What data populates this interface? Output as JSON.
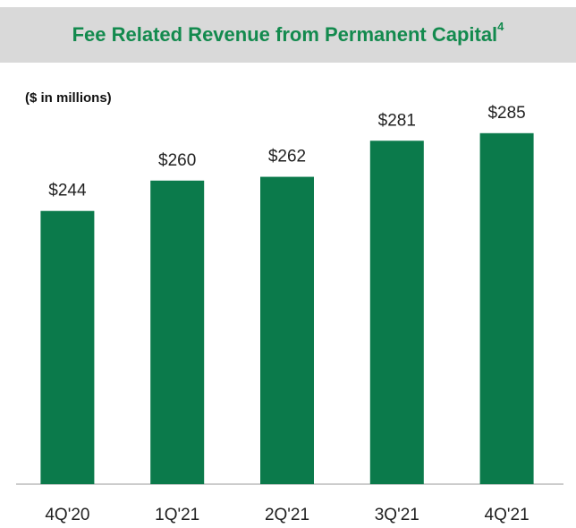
{
  "chart_data": {
    "type": "bar",
    "title": "Fee Related Revenue from Permanent Capital",
    "title_superscript": "4",
    "subtitle": "($ in millions)",
    "categories": [
      "4Q'20",
      "1Q'21",
      "2Q'21",
      "3Q'21",
      "4Q'21"
    ],
    "values": [
      244,
      260,
      262,
      281,
      285
    ],
    "value_labels": [
      "$244",
      "$260",
      "$262",
      "$281",
      "$285"
    ],
    "color": "#0b7a4b",
    "ylim": [
      100,
      300
    ],
    "grid": false
  }
}
